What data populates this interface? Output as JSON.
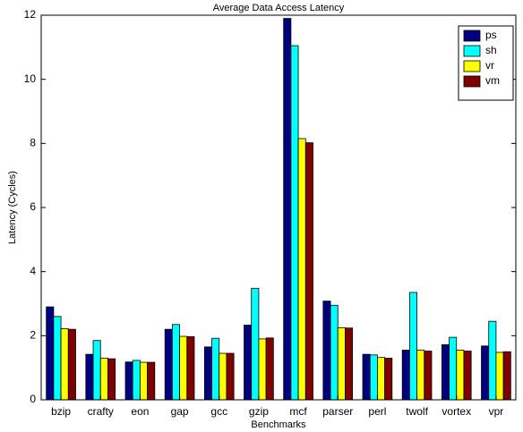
{
  "chart_data": {
    "type": "bar",
    "title": "Average Data Access Latency",
    "x_label": "Benchmarks",
    "y_label": "Latency (Cycles)",
    "categories": [
      "bzip",
      "crafty",
      "eon",
      "gap",
      "gcc",
      "gzip",
      "mcf",
      "parser",
      "perl",
      "twolf",
      "vortex",
      "vpr"
    ],
    "series": [
      {
        "name": "ps",
        "color": "#00007f",
        "values": [
          2.9,
          1.42,
          1.18,
          2.2,
          1.65,
          2.33,
          11.9,
          3.08,
          1.42,
          1.55,
          1.72,
          1.68
        ]
      },
      {
        "name": "sh",
        "color": "#00ffff",
        "values": [
          2.6,
          1.85,
          1.23,
          2.35,
          1.92,
          3.48,
          11.05,
          2.95,
          1.4,
          3.35,
          1.95,
          2.45
        ]
      },
      {
        "name": "vr",
        "color": "#ffff00",
        "values": [
          2.22,
          1.3,
          1.17,
          1.98,
          1.45,
          1.9,
          8.15,
          2.25,
          1.32,
          1.55,
          1.55,
          1.48
        ]
      },
      {
        "name": "vm",
        "color": "#7f0000",
        "values": [
          2.2,
          1.28,
          1.17,
          1.97,
          1.45,
          1.93,
          8.02,
          2.24,
          1.3,
          1.52,
          1.52,
          1.5
        ]
      }
    ],
    "ylim": [
      0,
      12
    ],
    "yticks": [
      0,
      2,
      4,
      6,
      8,
      10,
      12
    ],
    "legend": "upper right"
  }
}
